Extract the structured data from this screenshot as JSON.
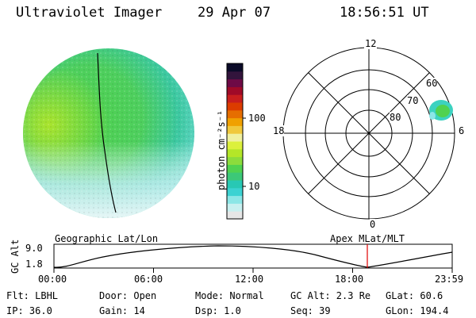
{
  "header": {
    "instrument": "Ultraviolet Imager",
    "date": "29 Apr 07",
    "time": "18:56:51 UT"
  },
  "colorbar": {
    "label": "photon cm⁻²s⁻¹",
    "ticks": [
      "100",
      "10"
    ],
    "colors": [
      "#e6e6e6",
      "#c8f0f0",
      "#8ce6e6",
      "#3cd2d2",
      "#28c8b4",
      "#3cc878",
      "#50d250",
      "#8cdc3c",
      "#b4e628",
      "#dcf03c",
      "#f0f0a0",
      "#f0c83c",
      "#f0a000",
      "#e66e00",
      "#dc3c00",
      "#c81e1e",
      "#a00a28",
      "#6e0a46",
      "#32143c",
      "#0a0a28"
    ]
  },
  "polar_plot": {
    "mlt_labels": [
      "12",
      "18",
      "6",
      "0"
    ],
    "mlat_labels": [
      "60",
      "70",
      "80"
    ]
  },
  "timeline": {
    "title_left": "Geographic Lat/Lon",
    "title_right": "Apex MLat/MLT",
    "ylabel": "GC Alt",
    "y_ticks": [
      "9.0",
      "1.8"
    ],
    "x_ticks": [
      "00:00",
      "06:00",
      "12:00",
      "18:00",
      "23:59"
    ],
    "marker_color": "#e00000"
  },
  "info": {
    "flt": "Flt: LBHL",
    "door": "Door: Open",
    "mode": "Mode: Normal",
    "gc_alt": "GC Alt: 2.3 Re",
    "glat": "GLat:  60.6",
    "ip": "IP: 36.0",
    "gain": "Gain: 14",
    "dsp": "Dsp:    1.0",
    "seq": "Seq: 39",
    "glon": "GLon: 194.4"
  }
}
